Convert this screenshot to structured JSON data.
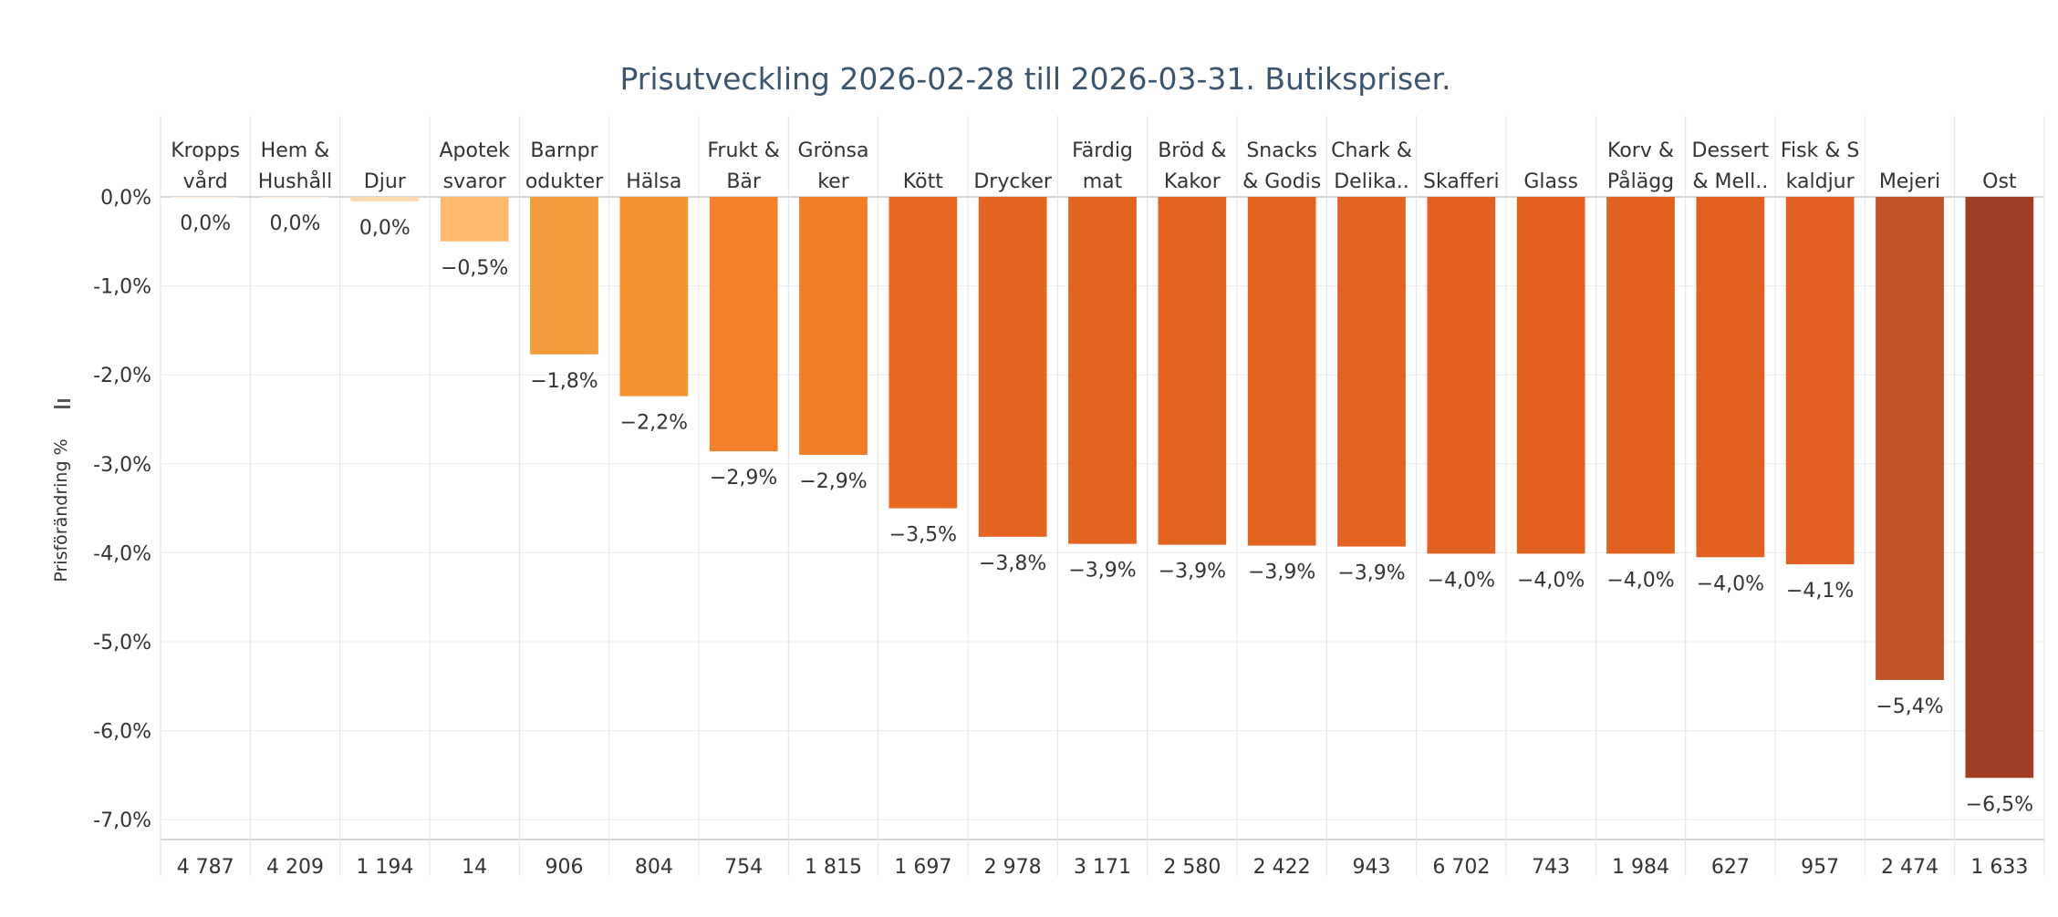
{
  "chart_data": {
    "type": "bar",
    "title": "Prisutveckling 2026-02-28 till 2026-03-31. Butikspriser.",
    "ylabel": "Prisförändring %",
    "ylim": [
      -7.3,
      0.0
    ],
    "yticks": [
      "0,0%",
      "-1,0%",
      "-2,0%",
      "-3,0%",
      "-4,0%",
      "-5,0%",
      "-6,0%",
      "-7,0%"
    ],
    "ytick_values": [
      0,
      -1,
      -2,
      -3,
      -4,
      -5,
      -6,
      -7
    ],
    "grid": true,
    "categories": [
      [
        "Kropps",
        "vård"
      ],
      [
        "Hem &",
        "Hushåll"
      ],
      [
        "Djur"
      ],
      [
        "Apotek",
        "svaror"
      ],
      [
        "Barnpr",
        "odukter"
      ],
      [
        "Hälsa"
      ],
      [
        "Frukt &",
        "Bär"
      ],
      [
        "Grönsa",
        "ker"
      ],
      [
        "Kött"
      ],
      [
        "Drycker"
      ],
      [
        "Färdig",
        "mat"
      ],
      [
        "Bröd &",
        "Kakor"
      ],
      [
        "Snacks",
        "& Godis"
      ],
      [
        "Chark &",
        "Delika.."
      ],
      [
        "Skafferi"
      ],
      [
        "Glass"
      ],
      [
        "Korv &",
        "Pålägg"
      ],
      [
        "Dessert",
        "& Mell.."
      ],
      [
        "Fisk & S",
        "kaldjur"
      ],
      [
        "Mejeri"
      ],
      [
        "Ost"
      ]
    ],
    "values": [
      0.0,
      0.0,
      -0.05,
      -0.5,
      -1.77,
      -2.24,
      -2.86,
      -2.9,
      -3.5,
      -3.82,
      -3.9,
      -3.91,
      -3.92,
      -3.93,
      -4.01,
      -4.01,
      -4.01,
      -4.05,
      -4.13,
      -5.43,
      -6.53
    ],
    "value_labels": [
      "0,0%",
      "0,0%",
      "0,0%",
      "−0,5%",
      "−1,8%",
      "−2,2%",
      "−2,9%",
      "−2,9%",
      "−3,5%",
      "−3,8%",
      "−3,9%",
      "−3,9%",
      "−3,9%",
      "−3,9%",
      "−4,0%",
      "−4,0%",
      "−4,0%",
      "−4,0%",
      "−4,1%",
      "−5,4%",
      "−6,5%"
    ],
    "counts": [
      "4 787",
      "4 209",
      "1 194",
      "14",
      "906",
      "804",
      "754",
      "1 815",
      "1 697",
      "2 978",
      "3 171",
      "2 580",
      "2 422",
      "943",
      "6 702",
      "743",
      "1 984",
      "627",
      "957",
      "2 474",
      "1 633"
    ],
    "colors": [
      "#fdebd3",
      "#fdebd3",
      "#fcd9ae",
      "#fdb96e",
      "#f59a3d",
      "#f4932f",
      "#f0812a",
      "#f07d28",
      "#e86a22",
      "#e46521",
      "#e36320",
      "#e36320",
      "#e36320",
      "#e36320",
      "#e26120",
      "#e26120",
      "#e26120",
      "#e26020",
      "#e15f20",
      "#c05127",
      "#9e3e25"
    ]
  }
}
